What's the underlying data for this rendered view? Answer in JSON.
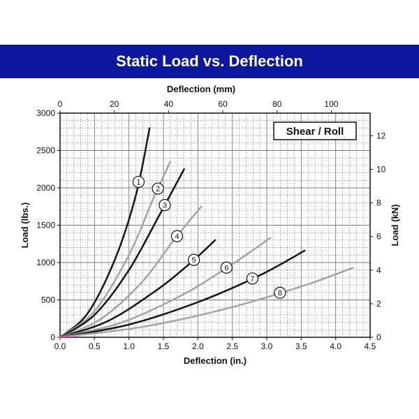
{
  "header": {
    "title": "Static Load vs. Deflection"
  },
  "chart_data": {
    "type": "line",
    "annotation": "Shear / Roll",
    "bottom_axis": {
      "label": "Deflection (in.)",
      "range": [
        0,
        4.5
      ],
      "ticks": [
        "0.0",
        "0.5",
        "1.0",
        "1.5",
        "2.0",
        "2.5",
        "3.0",
        "3.5",
        "4.0",
        "4.5"
      ]
    },
    "top_axis": {
      "label": "Deflection (mm)",
      "ticks": [
        "0",
        "20",
        "40",
        "60",
        "80",
        "100"
      ]
    },
    "left_axis": {
      "label": "Load (lbs.)",
      "range": [
        0,
        3000
      ],
      "ticks": [
        "0",
        "500",
        "1000",
        "1500",
        "2000",
        "2500",
        "3000"
      ]
    },
    "right_axis": {
      "label": "Load (kN)",
      "ticks": [
        "0",
        "2",
        "4",
        "6",
        "8",
        "10",
        "12"
      ]
    },
    "grid": true,
    "colors": {
      "dark": "#1a1a1a",
      "light": "#a6a6a6",
      "banner": "#0c179e"
    },
    "series": [
      {
        "name": "1",
        "color": "dark",
        "x": [
          0,
          0.4,
          0.8,
          1.1,
          1.3
        ],
        "y": [
          0,
          320,
          1050,
          1900,
          2800
        ]
      },
      {
        "name": "2",
        "color": "light",
        "x": [
          0,
          0.5,
          1.0,
          1.35,
          1.6
        ],
        "y": [
          0,
          350,
          1100,
          1850,
          2350
        ]
      },
      {
        "name": "3",
        "color": "dark",
        "x": [
          0,
          0.5,
          1.0,
          1.45,
          1.8
        ],
        "y": [
          0,
          300,
          900,
          1650,
          2250
        ]
      },
      {
        "name": "4",
        "color": "light",
        "x": [
          0,
          0.6,
          1.2,
          1.65,
          2.05
        ],
        "y": [
          0,
          250,
          750,
          1300,
          1750
        ]
      },
      {
        "name": "5",
        "color": "dark",
        "x": [
          0,
          0.7,
          1.4,
          1.9,
          2.25
        ],
        "y": [
          0,
          220,
          630,
          1000,
          1300
        ]
      },
      {
        "name": "6",
        "color": "light",
        "x": [
          0,
          0.9,
          1.8,
          2.5,
          3.05
        ],
        "y": [
          0,
          200,
          580,
          980,
          1330
        ]
      },
      {
        "name": "7",
        "color": "dark",
        "x": [
          0,
          1.0,
          2.0,
          2.9,
          3.55
        ],
        "y": [
          0,
          170,
          470,
          830,
          1160
        ]
      },
      {
        "name": "8",
        "color": "light",
        "x": [
          0,
          1.2,
          2.4,
          3.5,
          4.25
        ],
        "y": [
          0,
          140,
          380,
          680,
          930
        ]
      }
    ]
  }
}
